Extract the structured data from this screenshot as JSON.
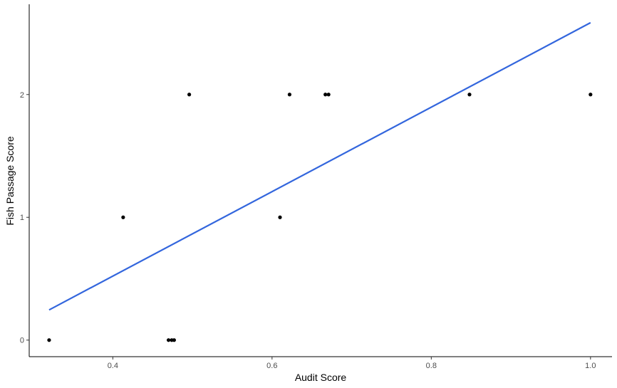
{
  "chart_data": {
    "type": "scatter",
    "title": "",
    "xlabel": "Audit Score",
    "ylabel": "Fish Passage Score",
    "xlim": [
      0.295,
      1.027
    ],
    "ylim": [
      -0.135,
      2.735
    ],
    "x_ticks": [
      0.4,
      0.6,
      0.8,
      1.0
    ],
    "x_tick_labels": [
      "0.4",
      "0.6",
      "0.8",
      "1.0"
    ],
    "y_ticks": [
      0,
      1,
      2
    ],
    "y_tick_labels": [
      "0",
      "1",
      "2"
    ],
    "grid": false,
    "points": [
      {
        "x": 0.32,
        "y": 0
      },
      {
        "x": 0.413,
        "y": 1
      },
      {
        "x": 0.47,
        "y": 0
      },
      {
        "x": 0.474,
        "y": 0
      },
      {
        "x": 0.477,
        "y": 0
      },
      {
        "x": 0.496,
        "y": 2
      },
      {
        "x": 0.61,
        "y": 1
      },
      {
        "x": 0.622,
        "y": 2
      },
      {
        "x": 0.667,
        "y": 2
      },
      {
        "x": 0.671,
        "y": 2
      },
      {
        "x": 0.848,
        "y": 2
      },
      {
        "x": 1.0,
        "y": 2
      }
    ],
    "fit_line": {
      "x": [
        0.32,
        1.0
      ],
      "y": [
        0.246,
        2.585
      ],
      "color": "#3366dd"
    },
    "point_color": "#000000"
  }
}
